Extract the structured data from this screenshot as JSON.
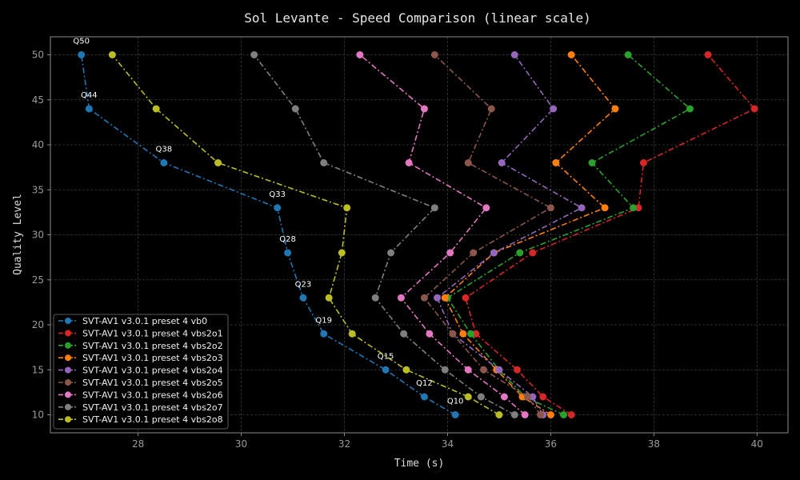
{
  "chart_data": {
    "type": "line",
    "title": "Sol Levante - Speed Comparison (linear scale)",
    "xlabel": "Time (s)",
    "ylabel": "Quality Level",
    "xlim": [
      26.3,
      40.6
    ],
    "ylim": [
      8.0,
      52.0
    ],
    "xticks": [
      28,
      30,
      32,
      34,
      36,
      38,
      40
    ],
    "yticks": [
      10,
      15,
      20,
      25,
      30,
      35,
      40,
      45,
      50
    ],
    "grid": true,
    "legend_position": "lower-left",
    "series": [
      {
        "name": "SVT-AV1 v3.0.1 preset 4 vb0",
        "color": "#1f77b4",
        "points": [
          [
            34.15,
            10
          ],
          [
            33.55,
            12
          ],
          [
            32.8,
            15
          ],
          [
            31.6,
            19
          ],
          [
            31.2,
            23
          ],
          [
            30.9,
            28
          ],
          [
            30.7,
            33
          ],
          [
            28.5,
            38
          ],
          [
            27.05,
            44
          ],
          [
            26.9,
            50
          ]
        ]
      },
      {
        "name": "SVT-AV1 v3.0.1 preset 4 vbs2o1",
        "color": "#d62728",
        "points": [
          [
            36.4,
            10
          ],
          [
            35.85,
            12
          ],
          [
            35.35,
            15
          ],
          [
            34.55,
            19
          ],
          [
            34.35,
            23
          ],
          [
            35.65,
            28
          ],
          [
            37.7,
            33
          ],
          [
            37.8,
            38
          ],
          [
            39.95,
            44
          ],
          [
            39.05,
            50
          ]
        ]
      },
      {
        "name": "SVT-AV1 v3.0.1 preset 4 vbs2o2",
        "color": "#2ca02c",
        "points": [
          [
            36.25,
            10
          ],
          [
            35.5,
            12
          ],
          [
            35.0,
            15
          ],
          [
            34.45,
            19
          ],
          [
            34.0,
            23
          ],
          [
            35.4,
            28
          ],
          [
            37.6,
            33
          ],
          [
            36.8,
            38
          ],
          [
            38.7,
            44
          ],
          [
            37.5,
            50
          ]
        ]
      },
      {
        "name": "SVT-AV1 v3.0.1 preset 4 vbs2o3",
        "color": "#ff7f0e",
        "points": [
          [
            36.0,
            10
          ],
          [
            35.45,
            12
          ],
          [
            34.95,
            15
          ],
          [
            34.3,
            19
          ],
          [
            33.95,
            23
          ],
          [
            34.9,
            28
          ],
          [
            37.05,
            33
          ],
          [
            36.1,
            38
          ],
          [
            37.25,
            44
          ],
          [
            36.4,
            50
          ]
        ]
      },
      {
        "name": "SVT-AV1 v3.0.1 preset 4 vbs2o4",
        "color": "#9467bd",
        "points": [
          [
            35.85,
            10
          ],
          [
            35.65,
            12
          ],
          [
            35.0,
            15
          ],
          [
            34.1,
            19
          ],
          [
            33.8,
            23
          ],
          [
            34.9,
            28
          ],
          [
            36.6,
            33
          ],
          [
            35.05,
            38
          ],
          [
            36.05,
            44
          ],
          [
            35.3,
            50
          ]
        ]
      },
      {
        "name": "SVT-AV1 v3.0.1 preset 4 vbs2o5",
        "color": "#8c564b",
        "points": [
          [
            35.8,
            10
          ],
          [
            35.55,
            12
          ],
          [
            34.7,
            15
          ],
          [
            34.1,
            19
          ],
          [
            33.55,
            23
          ],
          [
            34.5,
            28
          ],
          [
            36.0,
            33
          ],
          [
            34.4,
            38
          ],
          [
            34.85,
            44
          ],
          [
            33.75,
            50
          ]
        ]
      },
      {
        "name": "SVT-AV1 v3.0.1 preset 4 vbs2o6",
        "color": "#e377c2",
        "points": [
          [
            35.5,
            10
          ],
          [
            35.1,
            12
          ],
          [
            34.4,
            15
          ],
          [
            33.65,
            19
          ],
          [
            33.1,
            23
          ],
          [
            34.05,
            28
          ],
          [
            34.75,
            33
          ],
          [
            33.25,
            38
          ],
          [
            33.55,
            44
          ],
          [
            32.3,
            50
          ]
        ]
      },
      {
        "name": "SVT-AV1 v3.0.1 preset 4 vbs2o7",
        "color": "#7f7f7f",
        "points": [
          [
            35.3,
            10
          ],
          [
            34.65,
            12
          ],
          [
            33.95,
            15
          ],
          [
            33.15,
            19
          ],
          [
            32.6,
            23
          ],
          [
            32.9,
            28
          ],
          [
            33.75,
            33
          ],
          [
            31.6,
            38
          ],
          [
            31.05,
            44
          ],
          [
            30.25,
            50
          ]
        ]
      },
      {
        "name": "SVT-AV1 v3.0.1 preset 4 vbs2o8",
        "color": "#bcbd22",
        "points": [
          [
            35.0,
            10
          ],
          [
            34.4,
            12
          ],
          [
            33.2,
            15
          ],
          [
            32.15,
            19
          ],
          [
            31.7,
            23
          ],
          [
            31.95,
            28
          ],
          [
            32.05,
            33
          ],
          [
            29.55,
            38
          ],
          [
            28.35,
            44
          ],
          [
            27.5,
            50
          ]
        ]
      }
    ],
    "annotations": [
      {
        "text": "Q10",
        "x": 34.15,
        "y": 10
      },
      {
        "text": "Q12",
        "x": 33.55,
        "y": 12
      },
      {
        "text": "Q15",
        "x": 32.8,
        "y": 15
      },
      {
        "text": "Q19",
        "x": 31.6,
        "y": 19
      },
      {
        "text": "Q23",
        "x": 31.2,
        "y": 23
      },
      {
        "text": "Q28",
        "x": 30.9,
        "y": 28
      },
      {
        "text": "Q33",
        "x": 30.7,
        "y": 33
      },
      {
        "text": "Q38",
        "x": 28.5,
        "y": 38
      },
      {
        "text": "Q44",
        "x": 27.05,
        "y": 44
      },
      {
        "text": "Q50",
        "x": 26.9,
        "y": 50
      }
    ]
  }
}
